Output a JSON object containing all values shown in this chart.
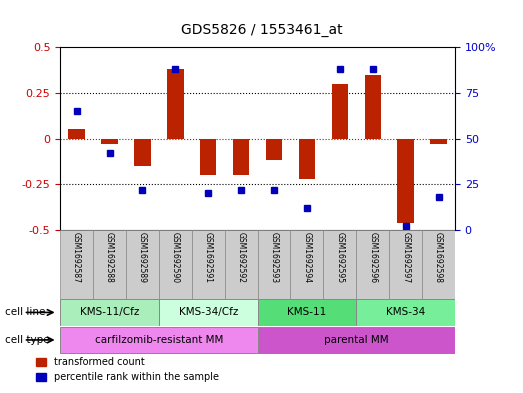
{
  "title": "GDS5826 / 1553461_at",
  "samples": [
    "GSM1692587",
    "GSM1692588",
    "GSM1692589",
    "GSM1692590",
    "GSM1692591",
    "GSM1692592",
    "GSM1692593",
    "GSM1692594",
    "GSM1692595",
    "GSM1692596",
    "GSM1692597",
    "GSM1692598"
  ],
  "transformed_count": [
    0.05,
    -0.03,
    -0.15,
    0.38,
    -0.2,
    -0.2,
    -0.12,
    -0.22,
    0.3,
    0.35,
    -0.46,
    -0.03
  ],
  "percentile_rank": [
    65,
    42,
    22,
    88,
    20,
    22,
    22,
    12,
    88,
    88,
    2,
    18
  ],
  "cell_line_groups": [
    {
      "label": "KMS-11/Cfz",
      "start": 0,
      "end": 3,
      "color": "#aaeebb"
    },
    {
      "label": "KMS-34/Cfz",
      "start": 3,
      "end": 6,
      "color": "#ccffdd"
    },
    {
      "label": "KMS-11",
      "start": 6,
      "end": 9,
      "color": "#55dd77"
    },
    {
      "label": "KMS-34",
      "start": 9,
      "end": 12,
      "color": "#77ee99"
    }
  ],
  "cell_type_groups": [
    {
      "label": "carfilzomib-resistant MM",
      "start": 0,
      "end": 6,
      "color": "#ee88ee"
    },
    {
      "label": "parental MM",
      "start": 6,
      "end": 12,
      "color": "#cc55cc"
    }
  ],
  "bar_color": "#bb2200",
  "dot_color": "#0000bb",
  "ylim_left": [
    -0.5,
    0.5
  ],
  "ylim_right": [
    0,
    100
  ],
  "yticks_left": [
    -0.5,
    -0.25,
    0.0,
    0.25,
    0.5
  ],
  "ytick_labels_left": [
    "-0.5",
    "-0.25",
    "0",
    "0.25",
    "0.5"
  ],
  "yticks_right": [
    0,
    25,
    50,
    75,
    100
  ],
  "ytick_labels_right": [
    "0",
    "25",
    "50",
    "75",
    "100%"
  ],
  "hline_color": "#cc0000",
  "dotted_line_color": "black",
  "background_color": "#ffffff",
  "plot_bg_color": "#ffffff",
  "legend_red_label": "transformed count",
  "legend_blue_label": "percentile rank within the sample",
  "cell_line_row_label": "cell line",
  "cell_type_row_label": "cell type",
  "sample_bg_color": "#cccccc",
  "left_label_color": "#cc0000",
  "right_label_color": "#0000cc"
}
